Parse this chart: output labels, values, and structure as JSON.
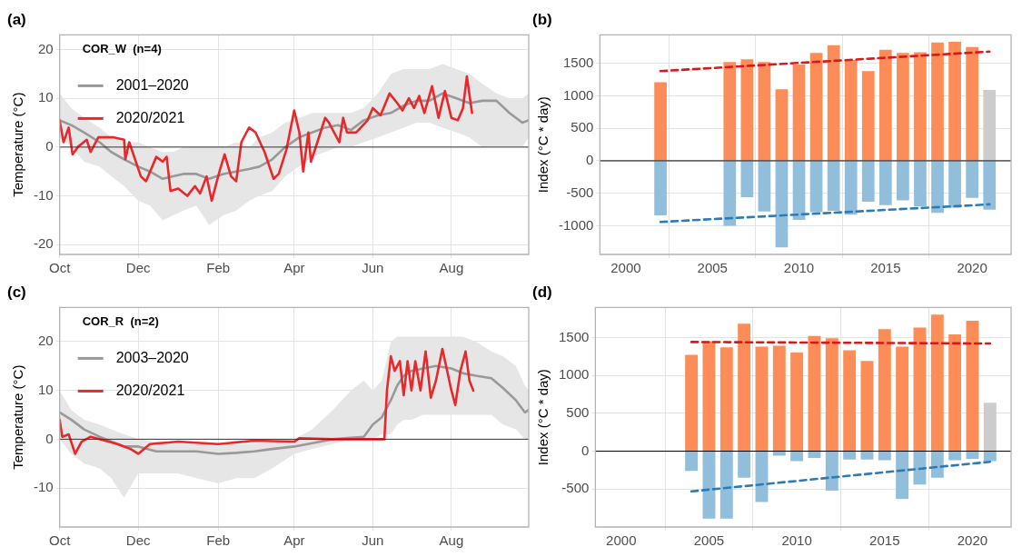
{
  "chart_data": [
    {
      "type": "line",
      "title": "(a)",
      "ylabel": "Temperature (°C)",
      "annotations": [
        "COR_W  (n=4)"
      ],
      "legend": "top left",
      "grid": true,
      "marker": "none",
      "xlim": [
        "2020-10-01",
        "2021-09-30"
      ],
      "ylim": [
        -22,
        23
      ],
      "yticks": [
        -20,
        -10,
        0,
        10,
        20
      ],
      "xticks": [
        {
          "value": "2020-10-01",
          "label": "Oct"
        },
        {
          "value": "2020-12-01",
          "label": "Dec"
        },
        {
          "value": "2021-02-01",
          "label": "Feb"
        },
        {
          "value": "2021-04-01",
          "label": "Apr"
        },
        {
          "value": "2021-06-01",
          "label": "Jun"
        },
        {
          "value": "2021-08-01",
          "label": "Aug"
        }
      ],
      "ref_lines": [
        {
          "axis": "y",
          "value": 0,
          "color": "#333333"
        }
      ],
      "series": [
        {
          "name": "2001–2020",
          "color": "#999999",
          "x": [
            "2020-10-01",
            "2020-10-10",
            "2020-10-20",
            "2020-11-01",
            "2020-11-10",
            "2020-11-20",
            "2020-12-01",
            "2020-12-10",
            "2020-12-20",
            "2020-12-28",
            "2021-01-05",
            "2021-01-15",
            "2021-01-25",
            "2021-02-05",
            "2021-02-15",
            "2021-02-25",
            "2021-03-05",
            "2021-03-15",
            "2021-03-25",
            "2021-04-05",
            "2021-04-15",
            "2021-04-25",
            "2021-05-05",
            "2021-05-15",
            "2021-05-25",
            "2021-06-05",
            "2021-06-15",
            "2021-06-25",
            "2021-07-05",
            "2021-07-15",
            "2021-07-25",
            "2021-08-05",
            "2021-08-15",
            "2021-08-25",
            "2021-09-05",
            "2021-09-15",
            "2021-09-25",
            "2021-09-30"
          ],
          "values": [
            5.5,
            4.5,
            3,
            1,
            -1,
            -2.5,
            -4,
            -5,
            -6.5,
            -6,
            -5.5,
            -5.5,
            -6.5,
            -5.5,
            -5,
            -4.5,
            -4,
            -2.5,
            0,
            2,
            3,
            4,
            4.5,
            3.5,
            5.5,
            6.5,
            7,
            8.5,
            9.5,
            9.5,
            11,
            10,
            9,
            9.5,
            9.5,
            7,
            5,
            5.5
          ],
          "upper": [
            11,
            8,
            6,
            4,
            2,
            1,
            1,
            0,
            -1,
            -1,
            0,
            0,
            0,
            0,
            1,
            0,
            2,
            3,
            5,
            6,
            7,
            7,
            7,
            7,
            8,
            11,
            15,
            16,
            16,
            16,
            17,
            16,
            15,
            13,
            11,
            10,
            10,
            11
          ],
          "lower": [
            2,
            0,
            -3,
            -4,
            -6,
            -8,
            -11,
            -12,
            -15,
            -14,
            -13,
            -12,
            -16,
            -14,
            -13,
            -11,
            -10,
            -9,
            -6,
            -4,
            -2,
            -1,
            0,
            0,
            1,
            2,
            3,
            4,
            5,
            5,
            4,
            3,
            2,
            0,
            0,
            0,
            0,
            2
          ]
        },
        {
          "name": "2020/2021",
          "color": "#e8282b",
          "x": [
            "2020-10-01",
            "2020-10-04",
            "2020-10-08",
            "2020-10-11",
            "2020-10-15",
            "2020-10-22",
            "2020-10-25",
            "2020-10-31",
            "2020-11-12",
            "2020-11-20",
            "2020-11-21",
            "2020-11-24",
            "2020-12-03",
            "2020-12-07",
            "2020-12-15",
            "2020-12-20",
            "2020-12-23",
            "2020-12-26",
            "2021-01-01",
            "2021-01-08",
            "2021-01-14",
            "2021-01-18",
            "2021-01-23",
            "2021-01-27",
            "2021-02-02",
            "2021-02-06",
            "2021-02-11",
            "2021-02-15",
            "2021-02-19",
            "2021-02-25",
            "2021-03-02",
            "2021-03-09",
            "2021-03-16",
            "2021-03-20",
            "2021-03-26",
            "2021-04-01",
            "2021-04-05",
            "2021-04-08",
            "2021-04-12",
            "2021-04-14",
            "2021-04-19",
            "2021-04-25",
            "2021-04-28",
            "2021-05-02",
            "2021-05-06",
            "2021-05-09",
            "2021-05-12",
            "2021-05-19",
            "2021-05-28",
            "2021-06-01",
            "2021-06-07",
            "2021-06-14",
            "2021-06-20",
            "2021-06-24",
            "2021-06-29",
            "2021-07-03",
            "2021-07-07",
            "2021-07-11",
            "2021-07-17",
            "2021-07-22",
            "2021-07-27",
            "2021-08-01",
            "2021-08-06",
            "2021-08-10",
            "2021-08-13",
            "2021-08-17"
          ],
          "values": [
            5.5,
            1,
            4,
            -1.5,
            0,
            1.5,
            -1,
            2,
            2,
            1.5,
            -2.5,
            1,
            -6,
            -7,
            -2,
            -3,
            -2,
            -9,
            -8.5,
            -10,
            -8,
            -9.5,
            -6,
            -11,
            -5,
            -1.5,
            -6,
            -7,
            1,
            4,
            3,
            -1,
            -6.5,
            -5.5,
            -0.5,
            7.5,
            3,
            -5,
            3,
            -3,
            1,
            6,
            5,
            3,
            1,
            6,
            3,
            3,
            5.5,
            8,
            6.5,
            11,
            9,
            7.5,
            10,
            8,
            10.5,
            7,
            12.5,
            6,
            11.5,
            6,
            5.5,
            8,
            14.5,
            7
          ]
        }
      ]
    },
    {
      "type": "bar",
      "title": "(b)",
      "ylabel": "Index (°C * day)",
      "grid": true,
      "marker": "none",
      "stacked": true,
      "xlim": [
        1998.5,
        2022.25
      ],
      "xticks": [
        2000,
        2005,
        2010,
        2015,
        2020
      ],
      "ylim": [
        -1440,
        1937
      ],
      "yticks": [
        -1000,
        -500,
        0,
        500,
        1000,
        1500
      ],
      "ref_lines": [
        {
          "axis": "y",
          "value": 0,
          "color": "#000000"
        }
      ],
      "series": [
        {
          "x": [
            2002,
            2006,
            2007,
            2008,
            2009,
            2010,
            2011,
            2012,
            2013,
            2014,
            2015,
            2016,
            2017,
            2018,
            2019,
            2020,
            2021
          ],
          "values": [
            1210,
            1520,
            1560,
            1520,
            1100,
            1480,
            1660,
            1780,
            1550,
            1380,
            1710,
            1660,
            1670,
            1820,
            1830,
            1750,
            1090
          ],
          "colors": [
            "#fc8d59",
            "#fc8d59",
            "#fc8d59",
            "#fc8d59",
            "#fc8d59",
            "#fc8d59",
            "#fc8d59",
            "#fc8d59",
            "#fc8d59",
            "#fc8d59",
            "#fc8d59",
            "#fc8d59",
            "#fc8d59",
            "#fc8d59",
            "#fc8d59",
            "#fc8d59",
            "#cccccc"
          ]
        },
        {
          "x": [
            2002,
            2006,
            2007,
            2008,
            2009,
            2010,
            2011,
            2012,
            2013,
            2014,
            2015,
            2016,
            2017,
            2018,
            2019,
            2020,
            2021
          ],
          "values": [
            -840,
            -1000,
            -560,
            -780,
            -1330,
            -910,
            -790,
            -770,
            -830,
            -630,
            -680,
            -610,
            -700,
            -800,
            -720,
            -570,
            -750
          ],
          "color": "#91bfdb"
        },
        {
          "type": "line",
          "line_style": "dashed",
          "color": "#d7191c",
          "x": [
            2002,
            2021
          ],
          "values": [
            1380,
            1680
          ]
        },
        {
          "type": "line",
          "line_style": "dashed",
          "color": "#2c7bb6",
          "x": [
            2002,
            2021
          ],
          "values": [
            -940,
            -670
          ]
        }
      ]
    },
    {
      "type": "line",
      "title": "(c)",
      "ylabel": "Temperature (°C)",
      "annotations": [
        "COR_R  (n=2)"
      ],
      "legend": "top left",
      "grid": true,
      "marker": "none",
      "xlim": [
        "2020-10-01",
        "2021-09-30"
      ],
      "ylim": [
        -18,
        27
      ],
      "yticks": [
        -10,
        0,
        10,
        20
      ],
      "xticks": [
        {
          "value": "2020-10-01",
          "label": "Oct"
        },
        {
          "value": "2020-12-01",
          "label": "Dec"
        },
        {
          "value": "2021-02-01",
          "label": "Feb"
        },
        {
          "value": "2021-04-01",
          "label": "Apr"
        },
        {
          "value": "2021-06-01",
          "label": "Jun"
        },
        {
          "value": "2021-08-01",
          "label": "Aug"
        }
      ],
      "ref_lines": [
        {
          "axis": "y",
          "value": 0,
          "color": "#333333"
        }
      ],
      "series": [
        {
          "name": "2003–2020",
          "color": "#999999",
          "x": [
            "2020-10-01",
            "2020-10-10",
            "2020-10-20",
            "2020-11-01",
            "2020-11-10",
            "2020-11-20",
            "2020-12-01",
            "2020-12-15",
            "2021-01-01",
            "2021-01-15",
            "2021-02-01",
            "2021-02-15",
            "2021-03-01",
            "2021-03-15",
            "2021-04-01",
            "2021-04-15",
            "2021-05-01",
            "2021-05-15",
            "2021-05-25",
            "2021-06-01",
            "2021-06-08",
            "2021-06-15",
            "2021-06-20",
            "2021-06-25",
            "2021-07-01",
            "2021-07-10",
            "2021-07-20",
            "2021-08-01",
            "2021-08-10",
            "2021-08-20",
            "2021-09-01",
            "2021-09-10",
            "2021-09-20",
            "2021-09-27",
            "2021-09-30"
          ],
          "values": [
            5.5,
            4,
            2,
            0.5,
            -0.5,
            -1.5,
            -1.5,
            -2.5,
            -2.5,
            -2.5,
            -3,
            -2.8,
            -2.5,
            -2,
            -1.5,
            -0.8,
            0,
            0.3,
            0.5,
            3,
            4.5,
            8,
            11,
            13,
            14,
            14.5,
            15,
            14.5,
            13.5,
            13,
            12.5,
            10.5,
            8,
            5.5,
            6
          ],
          "upper": [
            10,
            6,
            4,
            3,
            2,
            1,
            0,
            -0.5,
            -0.5,
            -1,
            -1,
            -1,
            -1,
            -0.5,
            0,
            2,
            6,
            10,
            12,
            10,
            12,
            20,
            21,
            21,
            21,
            21,
            21,
            21,
            21,
            20,
            18,
            17,
            15,
            11,
            10
          ],
          "lower": [
            0,
            -3,
            -5,
            -6,
            -8,
            -12,
            -7,
            -7,
            -7,
            -8,
            -9,
            -8,
            -8,
            -6,
            -3,
            -2,
            -1,
            0,
            0,
            0,
            1,
            1,
            3,
            4,
            4,
            5,
            5,
            5,
            5,
            5,
            5,
            3,
            2,
            0,
            0
          ]
        },
        {
          "name": "2020/2021",
          "color": "#e8282b",
          "x": [
            "2020-10-01",
            "2020-10-03",
            "2020-10-08",
            "2020-10-13",
            "2020-10-18",
            "2020-10-25",
            "2020-11-01",
            "2020-11-15",
            "2020-11-25",
            "2020-12-01",
            "2020-12-10",
            "2021-01-01",
            "2021-02-01",
            "2021-03-01",
            "2021-04-01",
            "2021-04-05",
            "2021-05-01",
            "2021-06-10",
            "2021-06-12",
            "2021-06-15",
            "2021-06-18",
            "2021-06-22",
            "2021-06-25",
            "2021-06-28",
            "2021-07-01",
            "2021-07-04",
            "2021-07-08",
            "2021-07-12",
            "2021-07-16",
            "2021-07-20",
            "2021-07-25",
            "2021-08-01",
            "2021-08-04",
            "2021-08-08",
            "2021-08-12",
            "2021-08-15",
            "2021-08-18"
          ],
          "values": [
            4,
            0.5,
            1,
            -3,
            -0.5,
            0.5,
            0,
            -1,
            -2,
            -3,
            -1,
            -0.5,
            -1,
            -0.3,
            -0.5,
            0.2,
            0,
            0,
            10,
            17,
            14,
            16,
            9,
            16,
            10,
            16,
            10,
            18,
            8.5,
            12,
            18.5,
            10,
            7,
            14,
            18,
            12,
            10
          ]
        }
      ]
    },
    {
      "type": "bar",
      "title": "(d)",
      "ylabel": "Index (°C * day)",
      "grid": true,
      "marker": "none",
      "stacked": true,
      "xlim": [
        1998.53,
        2022.2
      ],
      "xticks": [
        2000,
        2005,
        2010,
        2015,
        2020
      ],
      "ylim": [
        -1000,
        1895
      ],
      "yticks": [
        -500,
        0,
        500,
        1000,
        1500
      ],
      "ref_lines": [
        {
          "axis": "y",
          "value": 0,
          "color": "#000000"
        }
      ],
      "series": [
        {
          "x": [
            2004,
            2005,
            2006,
            2007,
            2008,
            2009,
            2010,
            2011,
            2012,
            2013,
            2014,
            2015,
            2016,
            2017,
            2018,
            2019,
            2020,
            2021
          ],
          "values": [
            1270,
            1450,
            1370,
            1680,
            1380,
            1390,
            1300,
            1520,
            1490,
            1330,
            1190,
            1610,
            1380,
            1630,
            1800,
            1540,
            1720,
            640
          ],
          "colors": [
            "#fc8d59",
            "#fc8d59",
            "#fc8d59",
            "#fc8d59",
            "#fc8d59",
            "#fc8d59",
            "#fc8d59",
            "#fc8d59",
            "#fc8d59",
            "#fc8d59",
            "#fc8d59",
            "#fc8d59",
            "#fc8d59",
            "#fc8d59",
            "#fc8d59",
            "#fc8d59",
            "#fc8d59",
            "#cccccc"
          ]
        },
        {
          "x": [
            2004,
            2005,
            2006,
            2007,
            2008,
            2009,
            2010,
            2011,
            2012,
            2013,
            2014,
            2015,
            2016,
            2017,
            2018,
            2019,
            2020,
            2021
          ],
          "values": [
            -260,
            -890,
            -890,
            -350,
            -670,
            -60,
            -130,
            -90,
            -520,
            -110,
            -110,
            -120,
            -630,
            -440,
            -350,
            -120,
            -100,
            -130
          ],
          "color": "#91bfdb"
        },
        {
          "type": "line",
          "line_style": "dashed",
          "color": "#d7191c",
          "x": [
            2004,
            2021
          ],
          "values": [
            1440,
            1420
          ]
        },
        {
          "type": "line",
          "line_style": "dashed",
          "color": "#2c7bb6",
          "x": [
            2004,
            2021
          ],
          "values": [
            -530,
            -140
          ]
        }
      ]
    }
  ]
}
